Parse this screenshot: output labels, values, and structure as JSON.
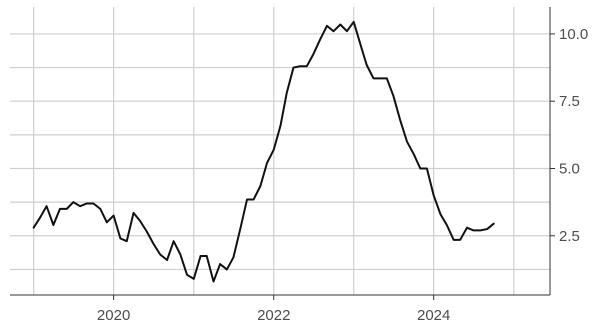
{
  "chart_data": {
    "type": "line",
    "title": "",
    "xlabel": "",
    "ylabel": "",
    "x_ticks": [
      "2020",
      "2022",
      "2024"
    ],
    "y_ticks": [
      "2.5",
      "5.0",
      "7.5",
      "10.0"
    ],
    "y_axis_position": "right",
    "xlim": [
      "2018-09-15",
      "2025-06-15"
    ],
    "ylim": [
      0.3,
      11.0
    ],
    "grid": true,
    "colors": {
      "line": "#111111",
      "grid": "#cfcfcf",
      "axis": "#333333",
      "tick_label": "#4d4d4d",
      "background": "#ffffff"
    },
    "series": [
      {
        "x": [
          "2019-01-01",
          "2019-02-01",
          "2019-03-01",
          "2019-04-01",
          "2019-05-01",
          "2019-06-01",
          "2019-07-01",
          "2019-08-01",
          "2019-09-01",
          "2019-10-01",
          "2019-11-01",
          "2019-12-01",
          "2020-01-01",
          "2020-02-01",
          "2020-03-01",
          "2020-04-01",
          "2020-05-01",
          "2020-06-01",
          "2020-07-01",
          "2020-08-01",
          "2020-09-01",
          "2020-10-01",
          "2020-11-01",
          "2020-12-01",
          "2021-01-01",
          "2021-02-01",
          "2021-03-01",
          "2021-04-01",
          "2021-05-01",
          "2021-06-01",
          "2021-07-01",
          "2021-08-01",
          "2021-09-01",
          "2021-10-01",
          "2021-11-01",
          "2021-12-01",
          "2022-01-01",
          "2022-02-01",
          "2022-03-01",
          "2022-04-01",
          "2022-05-01",
          "2022-06-01",
          "2022-07-01",
          "2022-08-01",
          "2022-09-01",
          "2022-10-01",
          "2022-11-01",
          "2022-12-01",
          "2023-01-01",
          "2023-02-01",
          "2023-03-01",
          "2023-04-01",
          "2023-05-01",
          "2023-06-01",
          "2023-07-01",
          "2023-08-01",
          "2023-09-01",
          "2023-10-01",
          "2023-11-01",
          "2023-12-01",
          "2024-01-01",
          "2024-02-01",
          "2024-03-01",
          "2024-04-01",
          "2024-05-01",
          "2024-06-01",
          "2024-07-01",
          "2024-08-01",
          "2024-09-01",
          "2024-10-01"
        ],
        "values": [
          2.8,
          3.2,
          3.6,
          2.9,
          3.5,
          3.5,
          3.75,
          3.6,
          3.7,
          3.7,
          3.5,
          3.0,
          3.25,
          2.4,
          2.3,
          3.35,
          3.05,
          2.65,
          2.2,
          1.8,
          1.6,
          2.3,
          1.8,
          1.05,
          0.9,
          1.75,
          1.75,
          0.8,
          1.45,
          1.25,
          1.7,
          2.75,
          3.85,
          3.85,
          4.35,
          5.2,
          5.7,
          6.6,
          7.8,
          8.75,
          8.8,
          8.8,
          9.25,
          9.8,
          10.3,
          10.1,
          10.35,
          10.1,
          10.45,
          9.6,
          8.85,
          8.35,
          8.35,
          8.35,
          7.7,
          6.8,
          6.0,
          5.55,
          5.0,
          5.0,
          4.0,
          3.3,
          2.9,
          2.35,
          2.35,
          2.8,
          2.7,
          2.7,
          2.75,
          2.95
        ]
      }
    ]
  }
}
